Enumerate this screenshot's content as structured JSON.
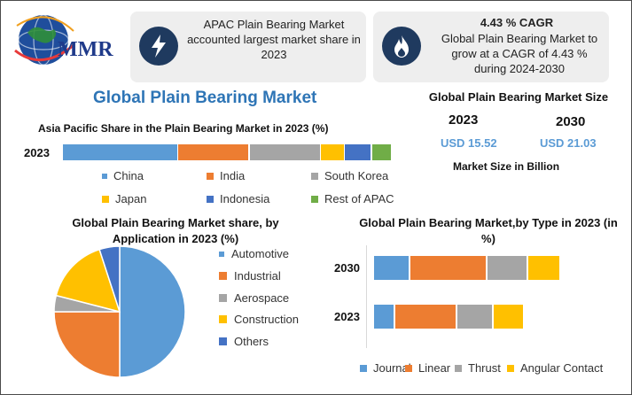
{
  "logo": {
    "text": "MMR"
  },
  "cards": [
    {
      "icon": "lightning-icon",
      "text": "APAC Plain Bearing Market accounted largest market share in 2023"
    },
    {
      "icon": "flame-icon",
      "title": "4.43 % CAGR",
      "text": "Global Plain Bearing Market to grow at a CAGR of 4.43 % during 2024-2030"
    }
  ],
  "main_title": "Global Plain Bearing Market",
  "market_size": {
    "title": "Global Plain Bearing Market Size",
    "years": [
      "2023",
      "2030"
    ],
    "values": [
      "USD 15.52",
      "USD 21.03"
    ],
    "caption": "Market Size in Billion"
  },
  "colors": {
    "china": "#5b9bd5",
    "india": "#ed7d31",
    "south_korea": "#a5a5a5",
    "japan": "#ffc000",
    "indonesia": "#4472c4",
    "rest": "#70ad47",
    "dark_blue": "#1f3a5f",
    "title_blue": "#2e75b6"
  },
  "chart_data": [
    {
      "type": "bar",
      "orientation": "horizontal-stacked",
      "title": "Asia Pacific Share in the Plain Bearing Market in 2023 (%)",
      "categories": [
        "2023"
      ],
      "series": [
        {
          "name": "China",
          "values": [
            34
          ]
        },
        {
          "name": "India",
          "values": [
            21
          ]
        },
        {
          "name": "South Korea",
          "values": [
            21
          ]
        },
        {
          "name": "Japan",
          "values": [
            7
          ]
        },
        {
          "name": "Indonesia",
          "values": [
            8
          ]
        },
        {
          "name": "Rest of APAC",
          "values": [
            6
          ]
        }
      ],
      "legend": "bottom",
      "grid": false
    },
    {
      "type": "pie",
      "title": "Global Plain Bearing Market share, by Application in 2023  (%)",
      "categories": [
        "Automotive",
        "Industrial",
        "Aerospace",
        "Construction",
        "Others"
      ],
      "values": [
        50,
        25,
        4,
        16,
        5
      ],
      "colors": [
        "#5b9bd5",
        "#ed7d31",
        "#a5a5a5",
        "#ffc000",
        "#4472c4"
      ],
      "legend": "right"
    },
    {
      "type": "bar",
      "orientation": "horizontal-stacked",
      "title": "Global Plain Bearing  Market,by Type in 2023 (in %)",
      "categories": [
        "2030",
        "2023"
      ],
      "series": [
        {
          "name": "Journal",
          "values": [
            19,
            11
          ]
        },
        {
          "name": "Linear",
          "values": [
            40,
            32
          ]
        },
        {
          "name": "Thrust",
          "values": [
            21,
            19
          ]
        },
        {
          "name": "Angular Contact",
          "values": [
            17,
            16
          ]
        }
      ],
      "colors": [
        "#5b9bd5",
        "#ed7d31",
        "#a5a5a5",
        "#ffc000"
      ],
      "legend": "bottom",
      "grid": false
    }
  ]
}
